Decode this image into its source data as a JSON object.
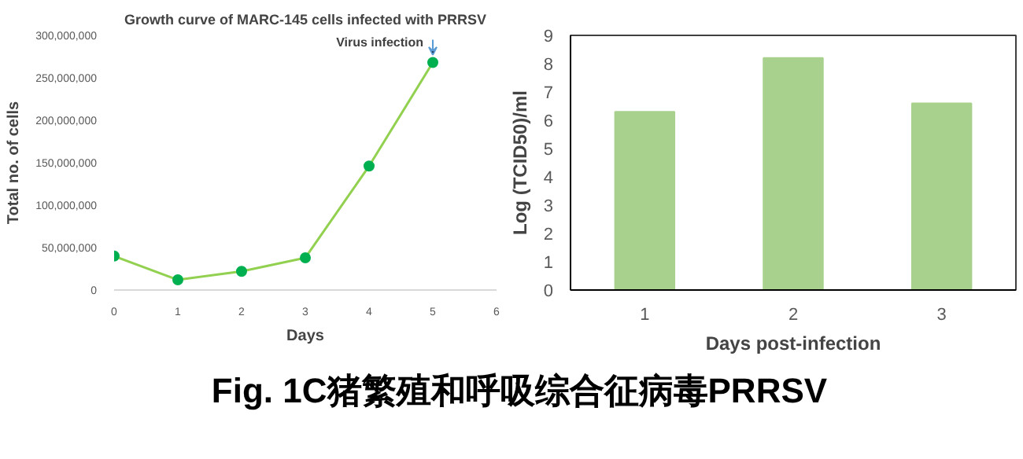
{
  "chart_data": [
    {
      "type": "line",
      "title": "Growth curve of MARC-145 cells infected with PRRSV",
      "xlabel": "Days",
      "ylabel": "Total no. of cells",
      "x": [
        0,
        1,
        2,
        3,
        4,
        5
      ],
      "series": [
        {
          "color": "#92d050",
          "values": [
            40000000,
            12000000,
            22000000,
            38000000,
            146000000,
            268000000
          ]
        },
        {
          "type": "scatter",
          "marker": "circle",
          "color": "#00b050",
          "values": [
            40000000,
            12000000,
            22000000,
            38000000,
            146000000,
            268000000
          ]
        }
      ],
      "xlim": [
        0,
        6
      ],
      "xticks": [
        0,
        1,
        2,
        3,
        4,
        5,
        6
      ],
      "ylim": [
        0,
        300000000
      ],
      "yticks": [
        {
          "value": 0,
          "label": "0"
        },
        {
          "value": 50000000,
          "label": "50,000,000"
        },
        {
          "value": 100000000,
          "label": "100,000,000"
        },
        {
          "value": 150000000,
          "label": "150,000,000"
        },
        {
          "value": 200000000,
          "label": "200,000,000"
        },
        {
          "value": 250000000,
          "label": "250,000,000"
        },
        {
          "value": 300000000,
          "label": "300,000,000"
        }
      ],
      "annotations": [
        {
          "text": "Virus infection",
          "x": 5,
          "y": 268000000
        }
      ]
    },
    {
      "type": "bar",
      "xlabel": "Days post-infection",
      "ylabel": "Log (TCID50)/ml",
      "categories": [
        "1",
        "2",
        "3"
      ],
      "values": [
        6.3,
        8.2,
        6.6
      ],
      "color": "#a9d18e",
      "ylim": [
        0,
        9
      ],
      "yticks": [
        0,
        1,
        2,
        3,
        4,
        5,
        6,
        7,
        8,
        9
      ]
    },
    {
      "type": "other",
      "title": "Fig. 1C猪繁殖和呼吸综合征病毒PRRSV"
    }
  ]
}
